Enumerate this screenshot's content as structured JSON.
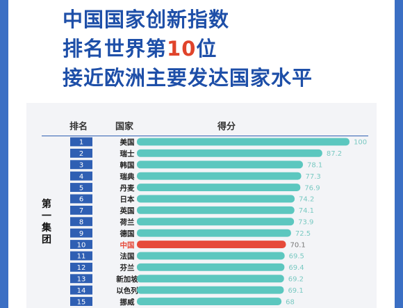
{
  "headline": {
    "line1": "中国国家创新指数",
    "line2_before": "排名世界第",
    "line2_number": "10",
    "line2_after": "位",
    "line3": "接近欧洲主要发达国家水平"
  },
  "table_headers": {
    "rank": "排名",
    "country": "国家",
    "score": "得分"
  },
  "group_label": "第一集团",
  "colors": {
    "bar": "#5cc7bf",
    "highlight_bar": "#e64a3a",
    "rank_box": "#2f5fb3",
    "value_text": "#79c9c2",
    "highlight_text": "#e64a3a",
    "headline": "#1e4fa8"
  },
  "chart_data": {
    "type": "bar",
    "orientation": "horizontal",
    "categories": [
      "美国",
      "瑞士",
      "韩国",
      "瑞典",
      "丹麦",
      "日本",
      "英国",
      "荷兰",
      "德国",
      "中国",
      "法国",
      "芬兰",
      "新加坡",
      "以色列",
      "挪威"
    ],
    "ranks": [
      "1",
      "2",
      "3",
      "4",
      "5",
      "6",
      "7",
      "8",
      "9",
      "10",
      "11",
      "12",
      "13",
      "14",
      "15"
    ],
    "values": [
      100,
      87.2,
      78.1,
      77.3,
      76.9,
      74.2,
      74.1,
      73.9,
      72.5,
      70.1,
      69.5,
      69.4,
      69.2,
      69.1,
      68
    ],
    "value_labels": [
      "100",
      "87.2",
      "78.1",
      "77.3",
      "76.9",
      "74.2",
      "74.1",
      "73.9",
      "72.5",
      "70.1",
      "69.5",
      "69.4",
      "69.2",
      "69.1",
      "68"
    ],
    "highlight_index": 9,
    "title": "",
    "xlabel": "",
    "ylabel": "",
    "xlim": [
      0,
      100
    ],
    "grid": false,
    "legend": "none"
  }
}
